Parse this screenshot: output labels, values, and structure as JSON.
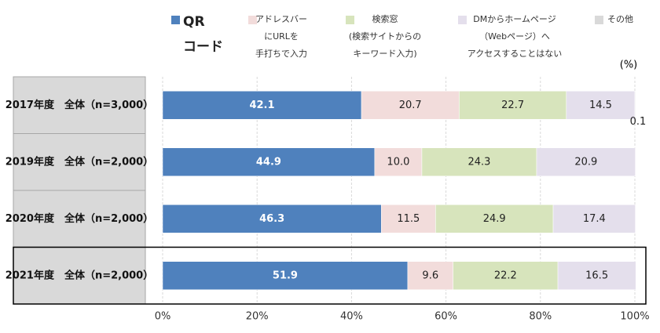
{
  "chart_data": {
    "type": "stacked-bar-horizontal",
    "unit": "(%)",
    "categories": [
      "2017年度　全体（n=3,000）",
      "2019年度　全体（n=2,000）",
      "2020年度　全体（n=2,000）",
      "2021年度　全体（n=2,000）"
    ],
    "series": [
      {
        "name": "QR\nコード",
        "color": "#4f81bd",
        "values": [
          42.1,
          44.9,
          46.3,
          51.9
        ]
      },
      {
        "name": "アドレスバー\nにURLを\n手打ちで入力",
        "color": "#f2dcdb",
        "values": [
          20.7,
          10.0,
          11.5,
          9.6
        ],
        "value_labels": [
          "20.7",
          "10.0",
          "11.5",
          "9.6"
        ]
      },
      {
        "name": "検索窓\n(検索サイトからの\nキーワード入力)",
        "color": "#d7e4bc",
        "values": [
          22.7,
          24.3,
          24.9,
          22.2
        ]
      },
      {
        "name": "DMからホームページ\n（Webページ）へ\nアクセスすることはない",
        "color": "#e4dfec",
        "values": [
          14.5,
          20.9,
          17.4,
          16.5
        ]
      },
      {
        "name": "その他",
        "color": "#d9d9d9",
        "values": [
          0.1,
          null,
          null,
          null
        ]
      }
    ],
    "xlim": [
      0,
      100
    ],
    "xticks": [
      {
        "value": 0,
        "label": "0%"
      },
      {
        "value": 20,
        "label": "20%"
      },
      {
        "value": 40,
        "label": "40%"
      },
      {
        "value": 60,
        "label": "60%"
      },
      {
        "value": 80,
        "label": "80%"
      },
      {
        "value": 100,
        "label": "100%"
      }
    ],
    "grid": true
  }
}
